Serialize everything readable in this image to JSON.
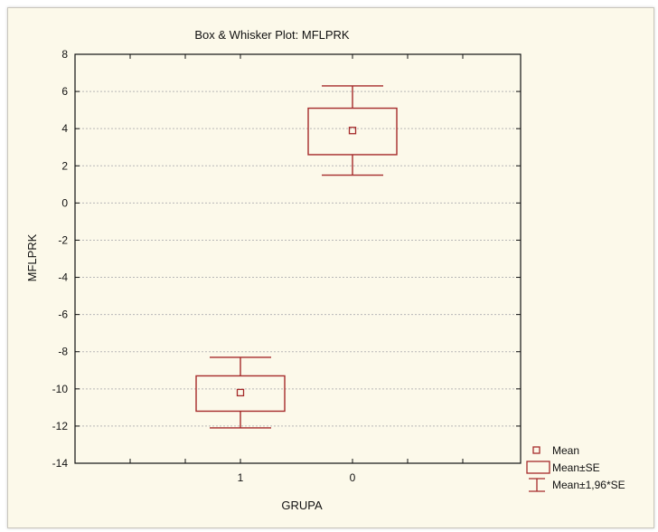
{
  "chart_data": {
    "type": "box",
    "title": "Box & Whisker Plot:  MFLPRK",
    "xlabel": "GRUPA",
    "ylabel": "MFLPRK",
    "categories": [
      "1",
      "0"
    ],
    "ylim": [
      -14,
      8
    ],
    "yticks": [
      8,
      6,
      4,
      2,
      0,
      -2,
      -4,
      -6,
      -8,
      -10,
      -12,
      -14
    ],
    "grid": true,
    "groups": [
      {
        "category": "1",
        "mean": -10.2,
        "se_low": -11.2,
        "se_high": -9.3,
        "ci_low": -12.1,
        "ci_high": -8.3
      },
      {
        "category": "0",
        "mean": 3.9,
        "se_low": 2.6,
        "se_high": 5.1,
        "ci_low": 1.5,
        "ci_high": 6.3
      }
    ],
    "legend": {
      "position": "bottom-right",
      "items": [
        {
          "symbol": "mean",
          "label": "Mean"
        },
        {
          "symbol": "box",
          "label": "Mean±SE"
        },
        {
          "symbol": "whisker",
          "label": "Mean±1,96*SE"
        }
      ]
    },
    "colors": {
      "box": "#a52a2a",
      "grid": "#b8b8b8",
      "background": "#fcf9ea",
      "axis": "#111111"
    }
  }
}
